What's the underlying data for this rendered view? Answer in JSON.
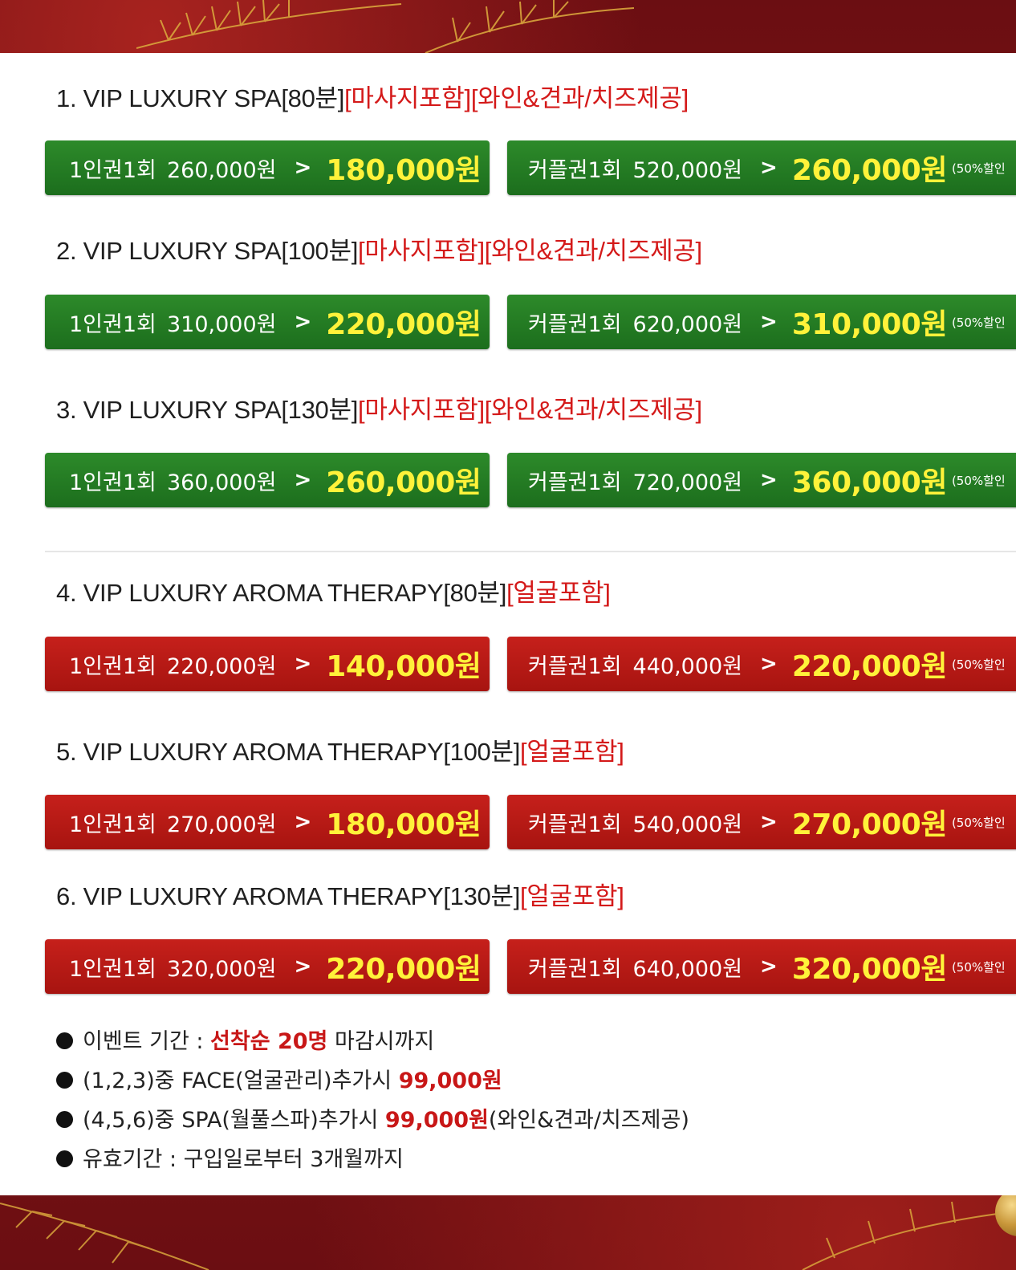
{
  "colors": {
    "heading_tag": "#d41a1a",
    "green_bar": "#1f7a21",
    "red_bar": "#b5170f",
    "sale_price": "#fff23a",
    "note_highlight": "#c81717",
    "background": "#7a1216"
  },
  "packages": [
    {
      "heading": "1. VIP LUXURY SPA[80분]",
      "tags": "[마사지포함][와인&견과/치즈제공]",
      "single": {
        "label": "1인권1회",
        "original": "260,000원",
        "sale": "180,000원"
      },
      "couple": {
        "label": "커플권1회",
        "original": "520,000원",
        "sale": "260,000원",
        "discount": "(50%할인"
      }
    },
    {
      "heading": "2. VIP LUXURY SPA[100분]",
      "tags": "[마사지포함][와인&견과/치즈제공]",
      "single": {
        "label": "1인권1회",
        "original": "310,000원",
        "sale": "220,000원"
      },
      "couple": {
        "label": "커플권1회",
        "original": "620,000원",
        "sale": "310,000원",
        "discount": "(50%할인"
      }
    },
    {
      "heading": "3. VIP LUXURY SPA[130분]",
      "tags": "[마사지포함][와인&견과/치즈제공]",
      "single": {
        "label": "1인권1회",
        "original": "360,000원",
        "sale": "260,000원"
      },
      "couple": {
        "label": "커플권1회",
        "original": "720,000원",
        "sale": "360,000원",
        "discount": "(50%할인"
      }
    },
    {
      "heading": "4. VIP LUXURY AROMA THERAPY[80분]",
      "tags": "[얼굴포함]",
      "single": {
        "label": "1인권1회",
        "original": "220,000원",
        "sale": "140,000원"
      },
      "couple": {
        "label": "커플권1회",
        "original": "440,000원",
        "sale": "220,000원",
        "discount": "(50%할인"
      }
    },
    {
      "heading": "5. VIP LUXURY AROMA THERAPY[100분]",
      "tags": "[얼굴포함]",
      "single": {
        "label": "1인권1회",
        "original": "270,000원",
        "sale": "180,000원"
      },
      "couple": {
        "label": "커플권1회",
        "original": "540,000원",
        "sale": "270,000원",
        "discount": "(50%할인"
      }
    },
    {
      "heading": "6. VIP LUXURY AROMA THERAPY[130분]",
      "tags": "[얼굴포함]",
      "single": {
        "label": "1인권1회",
        "original": "320,000원",
        "sale": "220,000원"
      },
      "couple": {
        "label": "커플권1회",
        "original": "640,000원",
        "sale": "320,000원",
        "discount": "(50%할인"
      }
    }
  ],
  "arrow": ">",
  "notes": [
    {
      "pre": "이벤트 기간 : ",
      "highlight": "선착순 20명",
      "post": " 마감시까지"
    },
    {
      "pre": "(1,2,3)중 FACE(얼굴관리)추가시 ",
      "highlight": "99,000원",
      "post": ""
    },
    {
      "pre": "(4,5,6)중 SPA(월풀스파)추가시 ",
      "highlight": "99,000원",
      "post": "(와인&견과/치즈제공)"
    },
    {
      "pre": "유효기간 : 구입일로부터 3개월까지",
      "highlight": "",
      "post": ""
    }
  ]
}
